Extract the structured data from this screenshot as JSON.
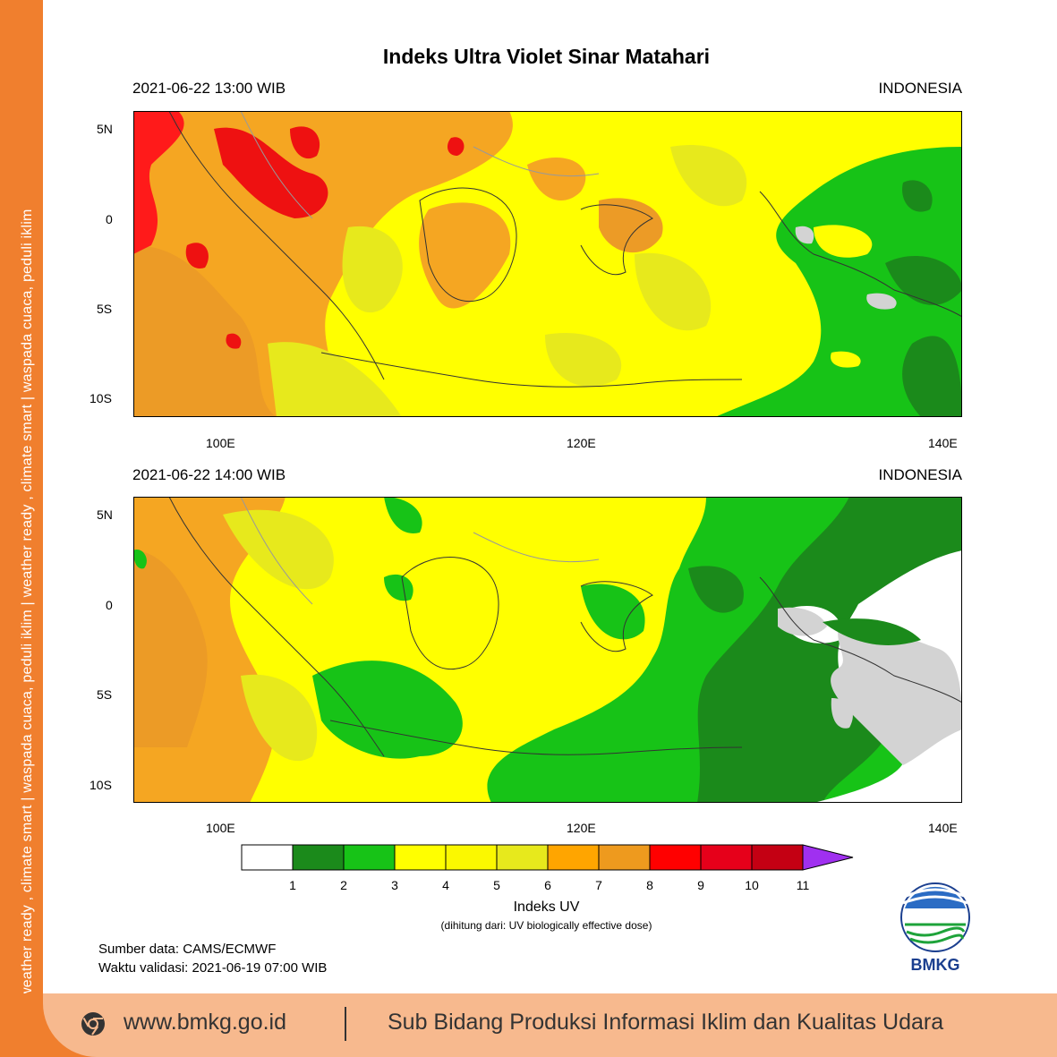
{
  "title": "Indeks Ultra Violet Sinar Matahari",
  "panels": [
    {
      "time_label": "2021-06-22  13:00 WIB",
      "region": "INDONESIA"
    },
    {
      "time_label": "2021-06-22  14:00 WIB",
      "region": "INDONESIA"
    }
  ],
  "axes": {
    "lat_ticks": [
      "5N",
      "0",
      "5S",
      "10S"
    ],
    "lon_ticks": [
      "100E",
      "120E",
      "140E"
    ]
  },
  "legend": {
    "title": "Indeks UV",
    "subtitle": "(dihitung dari: UV biologically effective dose)",
    "tick_labels": [
      "1",
      "2",
      "3",
      "4",
      "5",
      "6",
      "7",
      "8",
      "9",
      "10",
      "11"
    ],
    "colors": [
      "#ffffff",
      "#1b8a1b",
      "#17c317",
      "#ffff00",
      "#fbf800",
      "#e7e91c",
      "#ffa500",
      "#ee9a1e",
      "#ff0000",
      "#e6001a",
      "#c40013",
      "#a030f0"
    ]
  },
  "source": "Sumber data: CAMS/ECMWF",
  "validity": "Waktu validasi: 2021-06-19 07:00 WIB",
  "logo_text": "BMKG",
  "sidebar_tagline": "weather ready , climate smart  |  waspada cuaca, peduli iklim  |  weather ready , climate smart  |  waspada cuaca, peduli iklim",
  "footer": {
    "website": "www.bmkg.go.id",
    "department": "Sub Bidang Produksi Informasi Iklim dan Kualitas Udara"
  }
}
